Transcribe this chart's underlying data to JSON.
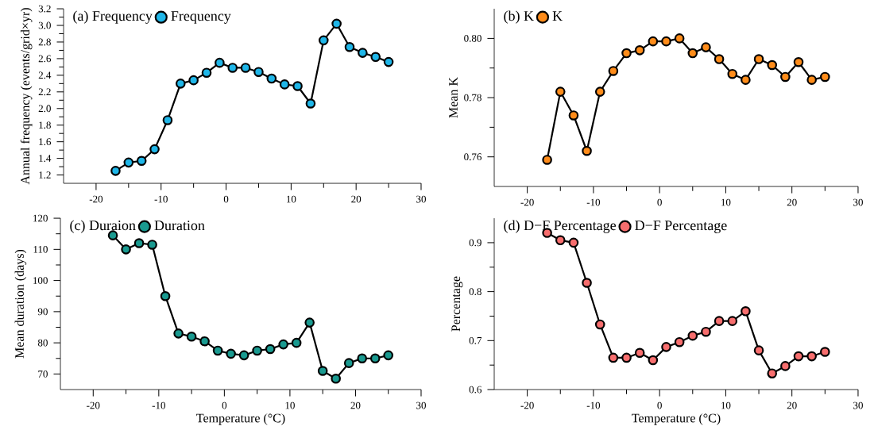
{
  "chart_data": [
    {
      "type": "line",
      "title": "(a) Frequency",
      "ylabel": "Annual frequency (events/grid×yr)",
      "x": [
        -17,
        -15,
        -13,
        -11,
        -9,
        -7,
        -5,
        -3,
        -1,
        1,
        3,
        5,
        7,
        9,
        11,
        13,
        15,
        17,
        19,
        21,
        23,
        25
      ],
      "series": [
        {
          "name": "Frequency",
          "color": "#1fb6e8",
          "values": [
            1.25,
            1.35,
            1.37,
            1.51,
            1.86,
            2.3,
            2.34,
            2.43,
            2.55,
            2.49,
            2.49,
            2.44,
            2.36,
            2.29,
            2.27,
            2.06,
            2.82,
            3.02,
            2.74,
            2.67,
            2.62,
            2.56
          ]
        }
      ],
      "xlim": [
        -25,
        30
      ],
      "xticks": [
        -20,
        -10,
        0,
        10,
        20,
        30
      ],
      "ylim": [
        1.1,
        3.2
      ],
      "yticks": [
        1.2,
        1.4,
        1.6,
        1.8,
        {
          "value": 2.0,
          "label": "2.0"
        },
        2.2,
        2.4,
        2.6,
        2.8,
        {
          "value": 3.0,
          "label": "3.0"
        },
        3.2
      ],
      "legend": "top left",
      "marker": "circle",
      "line_style": "solid",
      "grid": false
    },
    {
      "type": "line",
      "title": "(b) K",
      "ylabel": "Mean K",
      "x": [
        -17,
        -15,
        -13,
        -11,
        -9,
        -7,
        -5,
        -3,
        -1,
        1,
        3,
        5,
        7,
        9,
        11,
        13,
        15,
        17,
        19,
        21,
        23,
        25
      ],
      "series": [
        {
          "name": "K",
          "color": "#ff8c1a",
          "values": [
            0.759,
            0.782,
            0.774,
            0.762,
            0.782,
            0.789,
            0.795,
            0.796,
            0.799,
            0.799,
            0.8,
            0.795,
            0.797,
            0.793,
            0.788,
            0.786,
            0.793,
            0.791,
            0.787,
            0.792,
            0.786,
            0.787
          ]
        }
      ],
      "xlim": [
        -25,
        30
      ],
      "xticks": [
        -20,
        -10,
        0,
        10,
        20,
        30
      ],
      "ylim": [
        0.75,
        0.81
      ],
      "yticks": [
        0.76,
        0.78,
        {
          "value": 0.8,
          "label": "0.80"
        }
      ],
      "legend": "top left",
      "marker": "circle",
      "line_style": "solid",
      "grid": false
    },
    {
      "type": "line",
      "title": "(c) Duraion",
      "xlabel": "Temperature (°C)",
      "ylabel": "Mean duration (days)",
      "x": [
        -17,
        -15,
        -13,
        -11,
        -9,
        -7,
        -5,
        -3,
        -1,
        1,
        3,
        5,
        7,
        9,
        11,
        13,
        15,
        17,
        19,
        21,
        23,
        25
      ],
      "series": [
        {
          "name": "Duration",
          "color": "#1a9a90",
          "values": [
            114.5,
            110,
            112,
            111.5,
            95,
            83,
            82,
            80.5,
            77.5,
            76.5,
            76,
            77.5,
            78,
            79.5,
            80,
            86.5,
            71,
            68.5,
            73.5,
            75,
            75,
            76
          ]
        }
      ],
      "xlim": [
        -25,
        30
      ],
      "xticks": [
        -20,
        -10,
        0,
        10,
        20,
        30
      ],
      "ylim": [
        65,
        120
      ],
      "yticks": [
        70,
        80,
        90,
        100,
        110,
        120
      ],
      "legend": "top left",
      "marker": "circle",
      "line_style": "solid",
      "grid": false
    },
    {
      "type": "line",
      "title": "(d) D−F Percentage",
      "xlabel": "Temperature (°C)",
      "ylabel": "Percentage",
      "x": [
        -17,
        -15,
        -13,
        -11,
        -9,
        -7,
        -5,
        -3,
        -1,
        1,
        3,
        5,
        7,
        9,
        11,
        13,
        15,
        17,
        19,
        21,
        23,
        25
      ],
      "series": [
        {
          "name": "D−F Percentage",
          "color": "#f76e6e",
          "values": [
            0.92,
            0.905,
            0.9,
            0.818,
            0.733,
            0.665,
            0.665,
            0.675,
            0.66,
            0.687,
            0.697,
            0.71,
            0.718,
            0.74,
            0.74,
            0.76,
            0.68,
            0.633,
            0.648,
            0.668,
            0.668,
            0.677
          ]
        }
      ],
      "xlim": [
        -25,
        30
      ],
      "xticks": [
        -20,
        -10,
        0,
        10,
        20,
        30
      ],
      "ylim": [
        0.6,
        0.95
      ],
      "yticks": [
        0.6,
        0.7,
        0.8,
        0.9
      ],
      "legend": "top left",
      "marker": "circle",
      "line_style": "solid",
      "grid": false
    }
  ]
}
